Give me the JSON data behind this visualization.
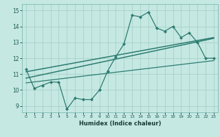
{
  "title": "",
  "xlabel": "Humidex (Indice chaleur)",
  "ylabel": "",
  "bg_color": "#c5e8e3",
  "line_color": "#2a7a6e",
  "grid_color": "#aad4cc",
  "xlim": [
    -0.5,
    23.5
  ],
  "ylim": [
    8.6,
    15.4
  ],
  "xticks": [
    0,
    1,
    2,
    3,
    4,
    5,
    6,
    7,
    8,
    9,
    10,
    11,
    12,
    13,
    14,
    15,
    16,
    17,
    18,
    19,
    20,
    21,
    22,
    23
  ],
  "yticks": [
    9,
    10,
    11,
    12,
    13,
    14,
    15
  ],
  "main_x": [
    0,
    1,
    2,
    3,
    4,
    5,
    6,
    7,
    8,
    9,
    10,
    11,
    12,
    13,
    14,
    15,
    16,
    17,
    18,
    19,
    20,
    21,
    22,
    23
  ],
  "main_y": [
    11.3,
    10.1,
    10.3,
    10.5,
    10.5,
    8.8,
    9.5,
    9.4,
    9.4,
    10.0,
    11.2,
    12.1,
    12.9,
    14.7,
    14.6,
    14.9,
    13.9,
    13.7,
    14.0,
    13.3,
    13.6,
    13.0,
    12.0,
    12.0
  ],
  "trend1_x": [
    0,
    23
  ],
  "trend1_y": [
    11.15,
    13.3
  ],
  "trend2_x": [
    0,
    23
  ],
  "trend2_y": [
    10.75,
    13.25
  ],
  "trend3_x": [
    0,
    23
  ],
  "trend3_y": [
    10.45,
    11.85
  ]
}
